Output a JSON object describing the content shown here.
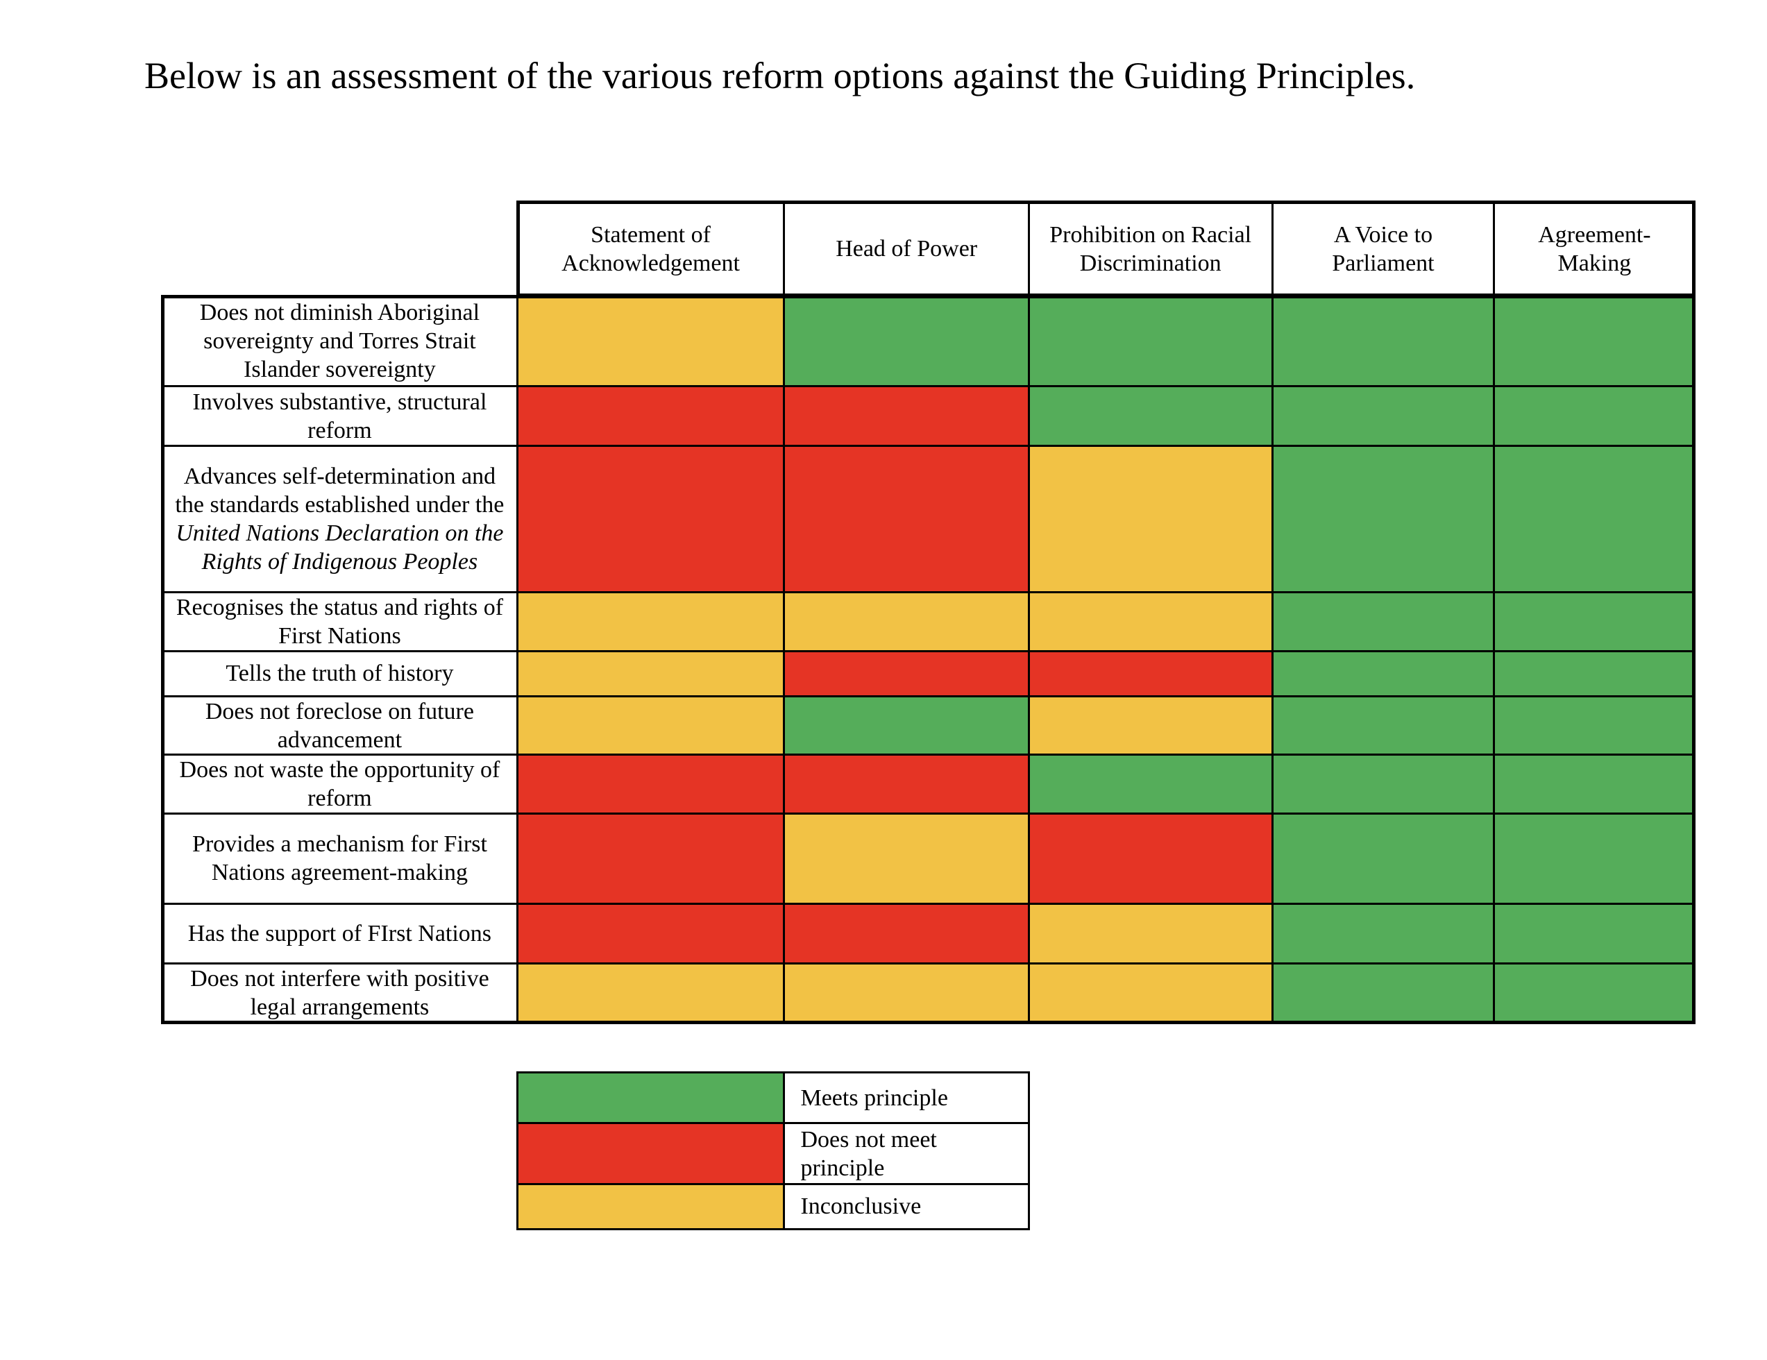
{
  "intro": "Below is an assessment of the various reform options against the Guiding Principles.",
  "table": {
    "columns": [
      "Statement of Acknowledgement",
      "Head of Power",
      "Prohibition on Racial Discrimination",
      "A Voice to Parliament",
      "Agreement-Making"
    ],
    "rows": [
      {
        "label": [
          "Does not diminish Aboriginal sovereignty and Torres Strait Islander sovereignty"
        ],
        "cells": [
          "#f2c245",
          "#55ad5a",
          "#55ad5a",
          "#55ad5a",
          "#55ad5a"
        ]
      },
      {
        "label": [
          "Involves substantive, structural reform"
        ],
        "cells": [
          "#e53425",
          "#e53425",
          "#55ad5a",
          "#55ad5a",
          "#55ad5a"
        ]
      },
      {
        "label": [
          "Advances self-determination and the standards established under the",
          "United Nations Declaration on the Rights of Indigenous Peoples"
        ],
        "italic_part": 1,
        "cells": [
          "#e53425",
          "#e53425",
          "#f2c245",
          "#55ad5a",
          "#55ad5a"
        ]
      },
      {
        "label": [
          "Recognises the status and rights of First Nations"
        ],
        "cells": [
          "#f2c245",
          "#f2c245",
          "#f2c245",
          "#55ad5a",
          "#55ad5a"
        ]
      },
      {
        "label": [
          "Tells the truth of history"
        ],
        "cells": [
          "#f2c245",
          "#e53425",
          "#e53425",
          "#55ad5a",
          "#55ad5a"
        ]
      },
      {
        "label": [
          "Does not foreclose on future advancement"
        ],
        "cells": [
          "#f2c245",
          "#55ad5a",
          "#f2c245",
          "#55ad5a",
          "#55ad5a"
        ]
      },
      {
        "label": [
          "Does not waste the opportunity of reform"
        ],
        "cells": [
          "#e53425",
          "#e53425",
          "#55ad5a",
          "#55ad5a",
          "#55ad5a"
        ]
      },
      {
        "label": [
          "Provides a mechanism for First Nations agreement-making"
        ],
        "cells": [
          "#e53425",
          "#f2c245",
          "#e53425",
          "#55ad5a",
          "#55ad5a"
        ]
      },
      {
        "label": [
          "Has the support of FIrst Nations"
        ],
        "cells": [
          "#e53425",
          "#e53425",
          "#f2c245",
          "#55ad5a",
          "#55ad5a"
        ]
      },
      {
        "label": [
          "Does not interfere with positive legal arrangements"
        ],
        "cells": [
          "#f2c245",
          "#f2c245",
          "#f2c245",
          "#55ad5a",
          "#55ad5a"
        ]
      }
    ]
  },
  "legend": [
    {
      "color": "#55ad5a",
      "label": "Meets principle"
    },
    {
      "color": "#e53425",
      "label": "Does not meet principle"
    },
    {
      "color": "#f2c245",
      "label": "Inconclusive"
    }
  ]
}
